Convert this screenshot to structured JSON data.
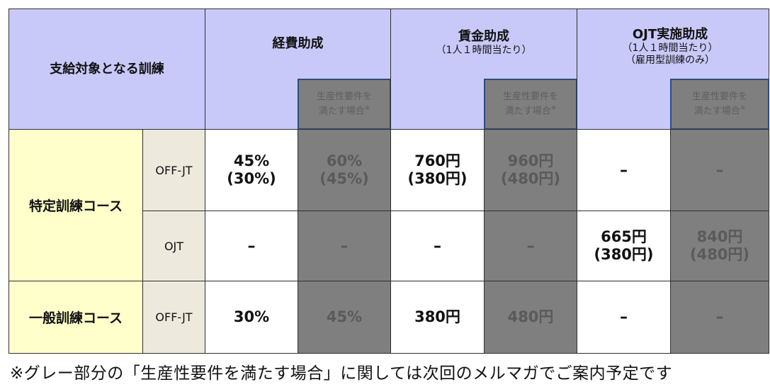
{
  "header": {
    "target": "支給対象となる訓練",
    "expense": "経費助成",
    "wage": "賃金助成",
    "wage_sub": "（1人１時間当たり）",
    "ojt": "OJT実施助成",
    "ojt_sub1": "（1人１時間当たり）",
    "ojt_sub2": "（雇用型訓練のみ）",
    "prod_line1": "生産性要件を",
    "prod_line2": "満たす場合",
    "prod_mark": "※"
  },
  "rows": {
    "specific": "特定訓練コース",
    "general": "一般訓練コース",
    "offjt": "OFF-JT",
    "ojt": "OJT"
  },
  "cells": {
    "sp_off": {
      "exp1": "45%",
      "exp2": "(30%)",
      "exp_p1": "60%",
      "exp_p2": "(45%)",
      "wage1": "760円",
      "wage2": "(380円)",
      "wage_p1": "960円",
      "wage_p2": "(480円)",
      "ojt": "–",
      "ojt_p": "–"
    },
    "sp_ojt": {
      "exp": "–",
      "exp_p": "–",
      "wage": "–",
      "wage_p": "–",
      "ojt1": "665円",
      "ojt2": "(380円)",
      "ojt_p1": "840円",
      "ojt_p2": "(480円)"
    },
    "gen_off": {
      "exp": "30%",
      "exp_p": "45%",
      "wage": "380円",
      "wage_p": "480円",
      "ojt": "–",
      "ojt_p": "–"
    }
  },
  "note": "※グレー部分の「生産性要件を満たす場合」に関しては次回のメルマガでご案内予定です",
  "colors": {
    "header_bg": "#c9c9f9",
    "course_bg": "#ffffcc",
    "type_bg": "#ede9dd",
    "gray": "#7f7f7f",
    "frame_blue": "#2e4c7a"
  }
}
